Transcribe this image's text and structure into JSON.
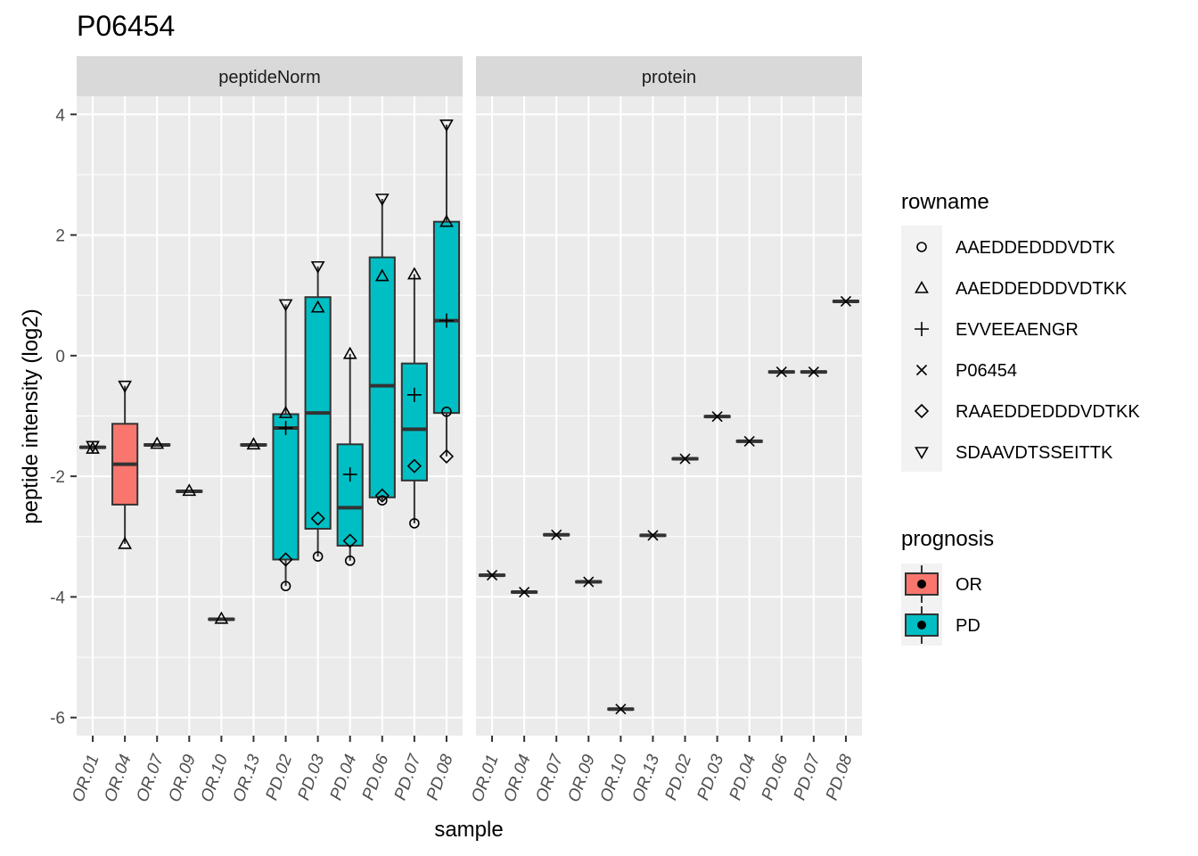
{
  "title": "P06454",
  "chart_data": {
    "type": "boxplot",
    "title": "P06454",
    "xlabel": "sample",
    "ylabel": "peptide intensity (log2)",
    "ylim": [
      -6.3,
      4.3
    ],
    "yticks": [
      -6,
      -4,
      -2,
      0,
      2,
      4
    ],
    "ytick_labels": [
      "-6",
      "-4",
      "-2",
      "0",
      "2",
      "4"
    ],
    "samples": [
      "OR.01",
      "OR.04",
      "OR.07",
      "OR.09",
      "OR.10",
      "OR.13",
      "PD.02",
      "PD.03",
      "PD.04",
      "PD.06",
      "PD.07",
      "PD.08"
    ],
    "prognosis": [
      "OR",
      "OR",
      "OR",
      "OR",
      "OR",
      "OR",
      "PD",
      "PD",
      "PD",
      "PD",
      "PD",
      "PD"
    ],
    "fill_colors": {
      "OR": "#F8766D",
      "PD": "#00BFC4"
    },
    "grid": true,
    "panels": [
      {
        "name": "peptideNorm",
        "boxes": [
          {
            "sample": "OR.01",
            "q1": -1.53,
            "median": -1.52,
            "q3": -1.51,
            "lo": -1.53,
            "hi": -1.51
          },
          {
            "sample": "OR.04",
            "q1": -2.47,
            "median": -1.8,
            "q3": -1.13,
            "lo": -3.12,
            "hi": -0.5
          },
          {
            "sample": "OR.07",
            "q1": -1.49,
            "median": -1.48,
            "q3": -1.47,
            "lo": -1.49,
            "hi": -1.47
          },
          {
            "sample": "OR.09",
            "q1": -2.26,
            "median": -2.25,
            "q3": -2.24,
            "lo": -2.26,
            "hi": -2.24
          },
          {
            "sample": "OR.10",
            "q1": -4.38,
            "median": -4.37,
            "q3": -4.36,
            "lo": -4.38,
            "hi": -4.36
          },
          {
            "sample": "OR.13",
            "q1": -1.49,
            "median": -1.48,
            "q3": -1.47,
            "lo": -1.49,
            "hi": -1.47
          },
          {
            "sample": "PD.02",
            "q1": -3.38,
            "median": -1.2,
            "q3": -0.97,
            "lo": -3.82,
            "hi": 0.85
          },
          {
            "sample": "PD.03",
            "q1": -2.87,
            "median": -0.95,
            "q3": 0.97,
            "lo": -3.33,
            "hi": 1.48
          },
          {
            "sample": "PD.04",
            "q1": -3.15,
            "median": -2.52,
            "q3": -1.47,
            "lo": -3.4,
            "hi": 0.03
          },
          {
            "sample": "PD.06",
            "q1": -2.35,
            "median": -0.5,
            "q3": 1.63,
            "lo": -2.4,
            "hi": 2.6
          },
          {
            "sample": "PD.07",
            "q1": -2.07,
            "median": -1.22,
            "q3": -0.13,
            "lo": -2.78,
            "hi": 1.35
          },
          {
            "sample": "PD.08",
            "q1": -0.95,
            "median": 0.58,
            "q3": 2.22,
            "lo": -1.67,
            "hi": 3.83
          }
        ],
        "points": [
          {
            "sample": "OR.01",
            "rowname": "AAEDDEDDDVDTKK",
            "y": -1.54
          },
          {
            "sample": "OR.01",
            "rowname": "SDAAVDTSSEITTK",
            "y": -1.5
          },
          {
            "sample": "OR.04",
            "rowname": "SDAAVDTSSEITTK",
            "y": -0.5
          },
          {
            "sample": "OR.04",
            "rowname": "AAEDDEDDDVDTKK",
            "y": -3.12
          },
          {
            "sample": "OR.07",
            "rowname": "AAEDDEDDDVDTKK",
            "y": -1.46
          },
          {
            "sample": "OR.09",
            "rowname": "AAEDDEDDDVDTKK",
            "y": -2.24
          },
          {
            "sample": "OR.10",
            "rowname": "AAEDDEDDDVDTKK",
            "y": -4.36
          },
          {
            "sample": "OR.13",
            "rowname": "AAEDDEDDDVDTKK",
            "y": -1.47
          },
          {
            "sample": "PD.02",
            "rowname": "SDAAVDTSSEITTK",
            "y": 0.85
          },
          {
            "sample": "PD.02",
            "rowname": "AAEDDEDDDVDTKK",
            "y": -0.95
          },
          {
            "sample": "PD.02",
            "rowname": "EVVEEAENGR",
            "y": -1.2
          },
          {
            "sample": "PD.02",
            "rowname": "RAAEDDEDDDVDTKK",
            "y": -3.38
          },
          {
            "sample": "PD.02",
            "rowname": "AAEDDEDDDVDTK",
            "y": -3.82
          },
          {
            "sample": "PD.03",
            "rowname": "SDAAVDTSSEITTK",
            "y": 1.48
          },
          {
            "sample": "PD.03",
            "rowname": "AAEDDEDDDVDTKK",
            "y": 0.8
          },
          {
            "sample": "PD.03",
            "rowname": "RAAEDDEDDDVDTKK",
            "y": -2.7
          },
          {
            "sample": "PD.03",
            "rowname": "AAEDDEDDDVDTK",
            "y": -3.33
          },
          {
            "sample": "PD.04",
            "rowname": "AAEDDEDDDVDTKK",
            "y": 0.03
          },
          {
            "sample": "PD.04",
            "rowname": "EVVEEAENGR",
            "y": -1.97
          },
          {
            "sample": "PD.04",
            "rowname": "RAAEDDEDDDVDTKK",
            "y": -3.07
          },
          {
            "sample": "PD.04",
            "rowname": "AAEDDEDDDVDTK",
            "y": -3.4
          },
          {
            "sample": "PD.06",
            "rowname": "SDAAVDTSSEITTK",
            "y": 2.6
          },
          {
            "sample": "PD.06",
            "rowname": "AAEDDEDDDVDTKK",
            "y": 1.32
          },
          {
            "sample": "PD.06",
            "rowname": "RAAEDDEDDDVDTKK",
            "y": -2.32
          },
          {
            "sample": "PD.06",
            "rowname": "AAEDDEDDDVDTK",
            "y": -2.4
          },
          {
            "sample": "PD.07",
            "rowname": "AAEDDEDDDVDTKK",
            "y": 1.35
          },
          {
            "sample": "PD.07",
            "rowname": "EVVEEAENGR",
            "y": -0.65
          },
          {
            "sample": "PD.07",
            "rowname": "RAAEDDEDDDVDTKK",
            "y": -1.83
          },
          {
            "sample": "PD.07",
            "rowname": "AAEDDEDDDVDTK",
            "y": -2.78
          },
          {
            "sample": "PD.08",
            "rowname": "SDAAVDTSSEITTK",
            "y": 3.83
          },
          {
            "sample": "PD.08",
            "rowname": "AAEDDEDDDVDTKK",
            "y": 2.22
          },
          {
            "sample": "PD.08",
            "rowname": "EVVEEAENGR",
            "y": 0.58
          },
          {
            "sample": "PD.08",
            "rowname": "AAEDDEDDDVDTK",
            "y": -0.93
          },
          {
            "sample": "PD.08",
            "rowname": "RAAEDDEDDDVDTKK",
            "y": -1.67
          }
        ]
      },
      {
        "name": "protein",
        "boxes": [
          {
            "sample": "OR.01",
            "q1": -3.65,
            "median": -3.64,
            "q3": -3.63,
            "lo": -3.65,
            "hi": -3.63
          },
          {
            "sample": "OR.04",
            "q1": -3.93,
            "median": -3.92,
            "q3": -3.91,
            "lo": -3.93,
            "hi": -3.91
          },
          {
            "sample": "OR.07",
            "q1": -2.98,
            "median": -2.97,
            "q3": -2.96,
            "lo": -2.98,
            "hi": -2.96
          },
          {
            "sample": "OR.09",
            "q1": -3.76,
            "median": -3.75,
            "q3": -3.74,
            "lo": -3.76,
            "hi": -3.74
          },
          {
            "sample": "OR.10",
            "q1": -5.87,
            "median": -5.86,
            "q3": -5.85,
            "lo": -5.87,
            "hi": -5.85
          },
          {
            "sample": "OR.13",
            "q1": -2.99,
            "median": -2.98,
            "q3": -2.97,
            "lo": -2.99,
            "hi": -2.97
          },
          {
            "sample": "PD.02",
            "q1": -1.72,
            "median": -1.71,
            "q3": -1.7,
            "lo": -1.72,
            "hi": -1.7
          },
          {
            "sample": "PD.03",
            "q1": -1.02,
            "median": -1.01,
            "q3": -1.0,
            "lo": -1.02,
            "hi": -1.0
          },
          {
            "sample": "PD.04",
            "q1": -1.43,
            "median": -1.42,
            "q3": -1.41,
            "lo": -1.43,
            "hi": -1.41
          },
          {
            "sample": "PD.06",
            "q1": -0.28,
            "median": -0.27,
            "q3": -0.26,
            "lo": -0.28,
            "hi": -0.26
          },
          {
            "sample": "PD.07",
            "q1": -0.28,
            "median": -0.27,
            "q3": -0.26,
            "lo": -0.28,
            "hi": -0.26
          },
          {
            "sample": "PD.08",
            "q1": 0.89,
            "median": 0.9,
            "q3": 0.91,
            "lo": 0.89,
            "hi": 0.91
          }
        ],
        "points": [
          {
            "sample": "OR.01",
            "rowname": "P06454",
            "y": -3.64
          },
          {
            "sample": "OR.04",
            "rowname": "P06454",
            "y": -3.92
          },
          {
            "sample": "OR.07",
            "rowname": "P06454",
            "y": -2.97
          },
          {
            "sample": "OR.09",
            "rowname": "P06454",
            "y": -3.75
          },
          {
            "sample": "OR.10",
            "rowname": "P06454",
            "y": -5.86
          },
          {
            "sample": "OR.13",
            "rowname": "P06454",
            "y": -2.98
          },
          {
            "sample": "PD.02",
            "rowname": "P06454",
            "y": -1.71
          },
          {
            "sample": "PD.03",
            "rowname": "P06454",
            "y": -1.01
          },
          {
            "sample": "PD.04",
            "rowname": "P06454",
            "y": -1.42
          },
          {
            "sample": "PD.06",
            "rowname": "P06454",
            "y": -0.27
          },
          {
            "sample": "PD.07",
            "rowname": "P06454",
            "y": -0.27
          },
          {
            "sample": "PD.08",
            "rowname": "P06454",
            "y": 0.9
          }
        ]
      }
    ]
  },
  "legend_shape": {
    "title": "rowname",
    "items": [
      {
        "label": "AAEDDEDDDVDTK",
        "shape": "circle-icon"
      },
      {
        "label": "AAEDDEDDDVDTKK",
        "shape": "triangle-icon"
      },
      {
        "label": "EVVEEAENGR",
        "shape": "plus-icon"
      },
      {
        "label": "P06454",
        "shape": "cross-icon"
      },
      {
        "label": "RAAEDDEDDDVDTKK",
        "shape": "diamond-icon"
      },
      {
        "label": "SDAAVDTSSEITTK",
        "shape": "triangle-down-icon"
      }
    ]
  },
  "legend_fill": {
    "title": "prognosis",
    "items": [
      {
        "label": "OR",
        "color": "#F8766D"
      },
      {
        "label": "PD",
        "color": "#00BFC4"
      }
    ]
  }
}
